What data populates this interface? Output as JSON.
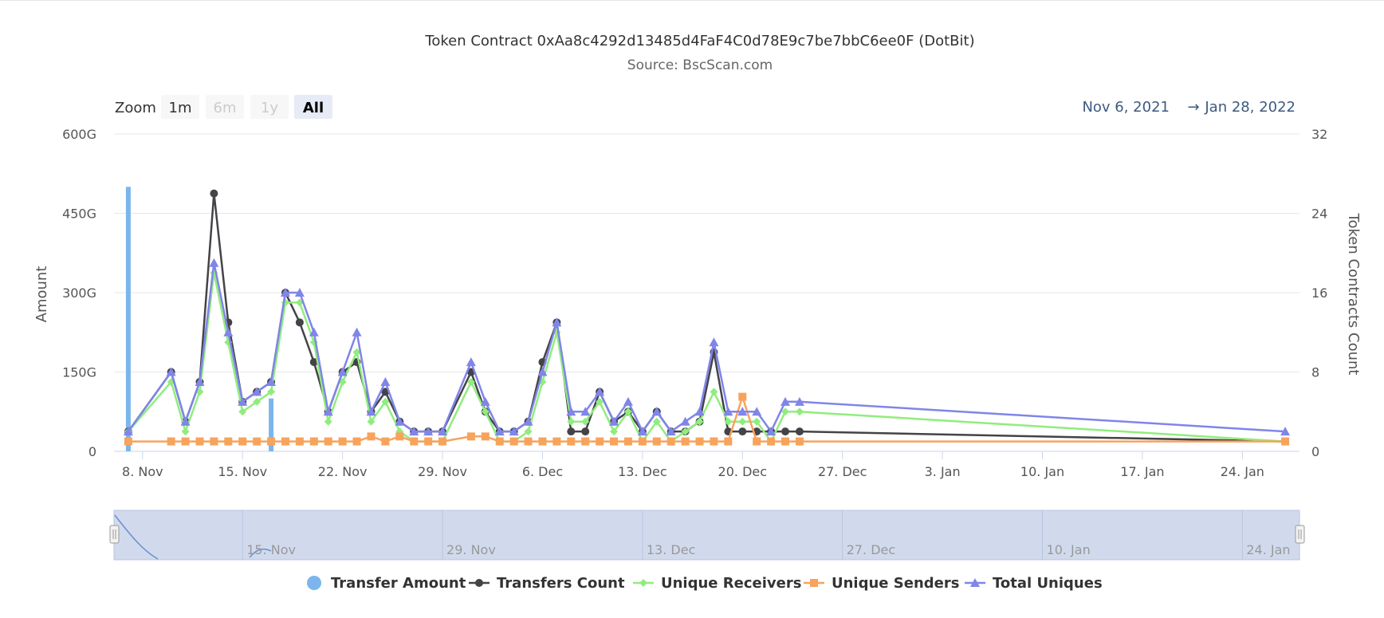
{
  "chart_data": {
    "type": "line",
    "title": "Token Contract 0xAa8c4292d13485d4FaF4C0d78E9c7be7bbC6ee0F (DotBit)",
    "subtitle": "Source: BscScan.com",
    "zoom": {
      "label": "Zoom",
      "buttons": [
        "1m",
        "6m",
        "1y",
        "All"
      ],
      "active": "All",
      "disabled": [
        "6m",
        "1y"
      ]
    },
    "date_range": {
      "from": "Nov 6, 2021",
      "arrow": "→",
      "to": "Jan 28, 2022"
    },
    "x_axis": {
      "start": "2021-11-06",
      "end": "2022-01-28",
      "ticks": [
        "8. Nov",
        "15. Nov",
        "22. Nov",
        "29. Nov",
        "6. Dec",
        "13. Dec",
        "20. Dec",
        "27. Dec",
        "3. Jan",
        "10. Jan",
        "17. Jan",
        "24. Jan"
      ],
      "tick_dates": [
        "2021-11-08",
        "2021-11-15",
        "2021-11-22",
        "2021-11-29",
        "2021-12-06",
        "2021-12-13",
        "2021-12-20",
        "2021-12-27",
        "2022-01-03",
        "2022-01-10",
        "2022-01-17",
        "2022-01-24"
      ]
    },
    "y_left": {
      "label": "Amount",
      "ylim": [
        0,
        600
      ],
      "ticks": [
        "0",
        "150G",
        "300G",
        "450G",
        "600G"
      ]
    },
    "y_right": {
      "label": "Token Contracts Count",
      "ylim": [
        0,
        32
      ],
      "ticks": [
        "0",
        "8",
        "16",
        "24",
        "32"
      ]
    },
    "grid": true,
    "legend_position": "bottom",
    "navigator": {
      "ticks": [
        "15. Nov",
        "29. Nov",
        "13. Dec",
        "27. Dec",
        "10. Jan",
        "24. Jan"
      ]
    },
    "dates": [
      "2021-11-07",
      "2021-11-10",
      "2021-11-11",
      "2021-11-12",
      "2021-11-13",
      "2021-11-14",
      "2021-11-15",
      "2021-11-16",
      "2021-11-17",
      "2021-11-18",
      "2021-11-19",
      "2021-11-20",
      "2021-11-21",
      "2021-11-22",
      "2021-11-23",
      "2021-11-24",
      "2021-11-25",
      "2021-11-26",
      "2021-11-27",
      "2021-11-28",
      "2021-11-29",
      "2021-12-01",
      "2021-12-02",
      "2021-12-03",
      "2021-12-04",
      "2021-12-05",
      "2021-12-06",
      "2021-12-07",
      "2021-12-08",
      "2021-12-09",
      "2021-12-10",
      "2021-12-11",
      "2021-12-12",
      "2021-12-13",
      "2021-12-14",
      "2021-12-15",
      "2021-12-16",
      "2021-12-17",
      "2021-12-18",
      "2021-12-19",
      "2021-12-20",
      "2021-12-21",
      "2021-12-22",
      "2021-12-23",
      "2021-12-24",
      "2022-01-27"
    ],
    "series": [
      {
        "name": "Transfer Amount",
        "type": "column",
        "axis": "left",
        "color": "#7cb5ec",
        "points": [
          [
            "2021-11-07",
            500
          ],
          [
            "2021-11-17",
            100
          ]
        ]
      },
      {
        "name": "Transfers Count",
        "type": "line",
        "axis": "right",
        "color": "#434348",
        "marker": "circle",
        "values": [
          2,
          8,
          3,
          7,
          26,
          13,
          5,
          6,
          7,
          16,
          13,
          9,
          4,
          8,
          9,
          4,
          6,
          3,
          2,
          2,
          2,
          8,
          4,
          2,
          2,
          3,
          9,
          13,
          2,
          2,
          6,
          3,
          4,
          2,
          4,
          2,
          2,
          3,
          10,
          2,
          2,
          2,
          2,
          2,
          2,
          1
        ]
      },
      {
        "name": "Unique Receivers",
        "type": "line",
        "axis": "right",
        "color": "#90ed7d",
        "marker": "diamond",
        "values": [
          2,
          7,
          2,
          6,
          18,
          11,
          4,
          5,
          6,
          15,
          15,
          11,
          3,
          7,
          10,
          3,
          5,
          2,
          1,
          1,
          1,
          7,
          4,
          1,
          1,
          2,
          7,
          12,
          3,
          3,
          5,
          2,
          4,
          1,
          3,
          1,
          2,
          3,
          6,
          3,
          3,
          3,
          1,
          4,
          4,
          1
        ]
      },
      {
        "name": "Unique Senders",
        "type": "line",
        "axis": "right",
        "color": "#f7a35c",
        "marker": "square",
        "values": [
          1,
          1,
          1,
          1,
          1,
          1,
          1,
          1,
          1,
          1,
          1,
          1,
          1,
          1,
          1,
          1.5,
          1,
          1.5,
          1,
          1,
          1,
          1.5,
          1.5,
          1,
          1,
          1,
          1,
          1,
          1,
          1,
          1,
          1,
          1,
          1,
          1,
          1,
          1,
          1,
          1,
          1,
          5.5,
          1,
          1,
          1,
          1,
          1
        ]
      },
      {
        "name": "Total Uniques",
        "type": "line",
        "axis": "right",
        "color": "#8085e9",
        "marker": "triangle",
        "values": [
          2,
          8,
          3,
          7,
          19,
          12,
          5,
          6,
          7,
          16,
          16,
          12,
          4,
          8,
          12,
          4,
          7,
          3,
          2,
          2,
          2,
          9,
          5,
          2,
          2,
          3,
          8,
          13,
          4,
          4,
          6,
          3,
          5,
          2,
          4,
          2,
          3,
          4,
          11,
          4,
          4,
          4,
          2,
          5,
          5,
          2
        ]
      }
    ]
  }
}
